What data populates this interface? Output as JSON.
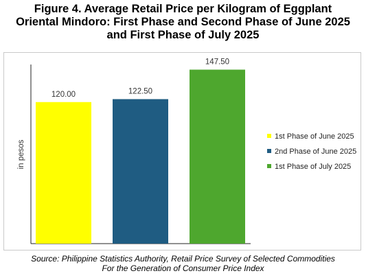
{
  "title": {
    "line1": "Figure 4. Average Retail Price per Kilogram of Eggplant",
    "line2": "Oriental Mindoro: First Phase and Second Phase of June 2025",
    "line3": "and First Phase of July 2025"
  },
  "source": {
    "line1": "Source: Philippine Statistics Authority, Retail Price Survey of Selected Commodities",
    "line2": "For the Generation of Consumer Price Index"
  },
  "chart_data": {
    "type": "bar",
    "title": "Figure 4. Average Retail Price per Kilogram of Eggplant Oriental Mindoro: First Phase and Second Phase of June 2025 and First Phase of July 2025",
    "xlabel": "",
    "ylabel": "in pesos",
    "ylim": [
      0,
      160
    ],
    "grid": false,
    "legend_position": "right",
    "series": [
      {
        "name": "1st Phase of June 2025",
        "value": 120.0,
        "label": "120.00",
        "color": "#ffff00"
      },
      {
        "name": "2nd Phase of June 2025",
        "value": 122.5,
        "label": "122.50",
        "color": "#1f5c82"
      },
      {
        "name": "1st Phase of July 2025",
        "value": 147.5,
        "label": "147.50",
        "color": "#4ea72e"
      }
    ]
  }
}
